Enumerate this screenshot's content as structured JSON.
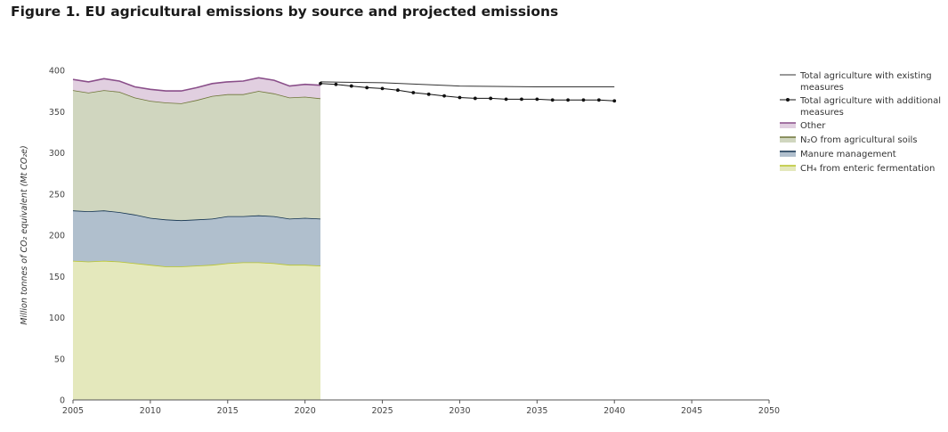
{
  "title": "Figure 1. EU agricultural emissions by source and projected emissions",
  "chart_data": {
    "type": "area",
    "ylabel": "Million tonnes of CO₂ equivalent (Mt CO₂e)",
    "xlabel": "",
    "xlim": [
      2005,
      2050
    ],
    "ylim": [
      0,
      400
    ],
    "x_ticks": [
      "2005",
      "2010",
      "2015",
      "2020",
      "2025",
      "2030",
      "2035",
      "2040",
      "2045",
      "2050"
    ],
    "y_ticks": [
      "0",
      "50",
      "100",
      "150",
      "200",
      "250",
      "300",
      "350",
      "400"
    ],
    "grid": false,
    "legend_position": "right",
    "stacked_series": {
      "x": [
        2005,
        2006,
        2007,
        2008,
        2009,
        2010,
        2011,
        2012,
        2013,
        2014,
        2015,
        2016,
        2017,
        2018,
        2019,
        2020,
        2021
      ],
      "series": [
        {
          "name": "CH₄ from enteric fermentation",
          "fill": "#e4e8bc",
          "line": "#b8c42a",
          "values": [
            169,
            168,
            169,
            168,
            166,
            164,
            162,
            162,
            163,
            164,
            166,
            167,
            167,
            166,
            164,
            164,
            163
          ]
        },
        {
          "name": "Manure management",
          "fill": "#b0bfcd",
          "line": "#10304e",
          "values": [
            61,
            61,
            61,
            60,
            59,
            57,
            57,
            56,
            56,
            56,
            57,
            56,
            57,
            57,
            56,
            57,
            57
          ]
        },
        {
          "name": "N₂O from agricultural soils",
          "fill": "#d0d6bf",
          "line": "#6e7538",
          "values": [
            146,
            144,
            146,
            146,
            142,
            142,
            142,
            142,
            145,
            149,
            148,
            148,
            151,
            149,
            147,
            147,
            146
          ]
        },
        {
          "name": "Other",
          "fill": "#e1cfe0",
          "line": "#8a4f8a",
          "values": [
            13,
            13,
            14,
            13,
            13,
            14,
            14,
            15,
            15,
            15,
            15,
            16,
            16,
            16,
            14,
            15,
            16
          ]
        }
      ]
    },
    "projections": [
      {
        "name": "Total agriculture with existing measures",
        "color": "#333333",
        "markers": false,
        "x": [
          2021,
          2025,
          2030,
          2035,
          2040
        ],
        "values": [
          386,
          385,
          381,
          380,
          380
        ]
      },
      {
        "name": "Total agriculture with additional measures",
        "color": "#111111",
        "markers": true,
        "x": [
          2021,
          2022,
          2023,
          2024,
          2025,
          2026,
          2027,
          2028,
          2029,
          2030,
          2031,
          2032,
          2033,
          2034,
          2035,
          2036,
          2037,
          2038,
          2039,
          2040
        ],
        "values": [
          384,
          383,
          381,
          379,
          378,
          376,
          373,
          371,
          369,
          367,
          366,
          366,
          365,
          365,
          365,
          364,
          364,
          364,
          364,
          363
        ]
      }
    ],
    "legend": [
      {
        "label_lines": [
          "Total agriculture with existing",
          "measures"
        ],
        "kind": "line",
        "color": "#333333"
      },
      {
        "label_lines": [
          "Total agriculture with additional",
          "measures"
        ],
        "kind": "line-marker",
        "color": "#111111"
      },
      {
        "label_lines": [
          "Other"
        ],
        "kind": "area",
        "fill": "#e1cfe0",
        "line": "#8a4f8a"
      },
      {
        "label_lines": [
          "N₂O from agricultural soils"
        ],
        "kind": "area",
        "fill": "#d0d6bf",
        "line": "#6e7538"
      },
      {
        "label_lines": [
          "Manure management"
        ],
        "kind": "area",
        "fill": "#b0bfcd",
        "line": "#10304e"
      },
      {
        "label_lines": [
          "CH₄ from enteric fermentation"
        ],
        "kind": "area",
        "fill": "#e4e8bc",
        "line": "#b8c42a"
      }
    ]
  }
}
